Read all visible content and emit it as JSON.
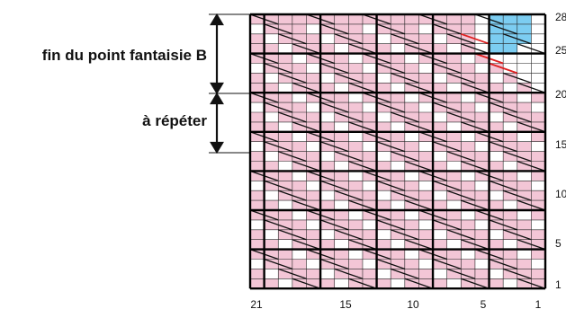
{
  "labels": {
    "end_pattern": "fin du point fantaisie B",
    "repeat": "à répéter"
  },
  "row_numbers": [
    "28",
    "25",
    "20",
    "15",
    "10",
    "5",
    "1"
  ],
  "stitch_numbers": [
    "21",
    "15",
    "10",
    "5",
    "1"
  ],
  "chart": {
    "stitches": 21,
    "rows": 28,
    "block_size": 4,
    "repeat_rows": [
      13,
      20
    ],
    "end_rows": [
      21,
      28
    ]
  },
  "colors": {
    "background_stitch": "#f3c6d6",
    "plain_stitch": "#ffffff",
    "highlight_stitch": "#7ccdf1",
    "grid_line": "#222222",
    "block_line": "#000000",
    "red_mark": "#e02020"
  },
  "icons": {
    "range_arrow": "double-headed-vertical-arrow",
    "decrease_symbol": "diagonal-slash-stitch",
    "red_decrease_symbol": "red-diagonal-stitch"
  }
}
